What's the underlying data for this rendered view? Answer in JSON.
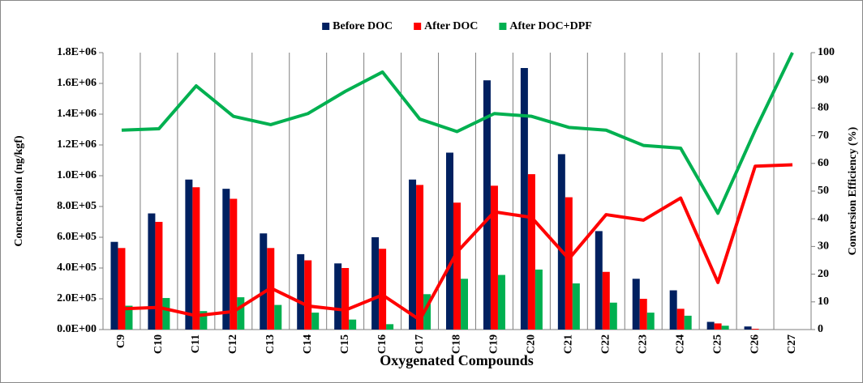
{
  "chart_data": {
    "type": "bar",
    "x_label": "Oxygenated Compounds",
    "y_label": "Concentration (ng/kgf)",
    "y2_label": "Conversion Efficiency (%)",
    "legend": "top",
    "categories": [
      "C9",
      "C10",
      "C11",
      "C12",
      "C13",
      "C14",
      "C15",
      "C16",
      "C17",
      "C18",
      "C19",
      "C20",
      "C21",
      "C22",
      "C23",
      "C24",
      "C25",
      "C26",
      "C27"
    ],
    "series": [
      {
        "name": "Before DOC",
        "type": "bar",
        "color": "#002060",
        "values": [
          570000,
          755000,
          975000,
          915000,
          625000,
          490000,
          430000,
          600000,
          975000,
          1150000,
          1620000,
          1700000,
          1140000,
          640000,
          330000,
          255000,
          50000,
          20000,
          0
        ]
      },
      {
        "name": "After DOC",
        "type": "bar",
        "color": "#ff0000",
        "values": [
          530000,
          700000,
          925000,
          850000,
          530000,
          450000,
          400000,
          525000,
          940000,
          825000,
          935000,
          1010000,
          860000,
          375000,
          200000,
          135000,
          40000,
          5000,
          0
        ]
      },
      {
        "name": "After DOC+DPF",
        "type": "bar",
        "color": "#00b050",
        "values": [
          155000,
          205000,
          120000,
          210000,
          160000,
          110000,
          65000,
          35000,
          230000,
          330000,
          355000,
          390000,
          300000,
          175000,
          110000,
          90000,
          25000,
          0,
          0
        ]
      },
      {
        "type": "line",
        "axis": "y2",
        "color": "#ff0000",
        "values": [
          7.5,
          8,
          5,
          6.5,
          15,
          8.5,
          7,
          12.5,
          3.5,
          28,
          42.5,
          40.5,
          25.5,
          41.5,
          39.5,
          47.5,
          17,
          59,
          59.5
        ]
      },
      {
        "type": "line",
        "axis": "y2",
        "color": "#00b050",
        "values": [
          72,
          72.5,
          88,
          77,
          74,
          78,
          86,
          93,
          76,
          71.5,
          78,
          77,
          73,
          72,
          66.5,
          65.5,
          42,
          72,
          100
        ]
      }
    ],
    "ylim": [
      0,
      1800000
    ],
    "yticks": [
      {
        "value": 0,
        "label": "0.0E+00"
      },
      {
        "value": 200000,
        "label": "2.0E+05"
      },
      {
        "value": 400000,
        "label": "4.0E+05"
      },
      {
        "value": 600000,
        "label": "6.0E+05"
      },
      {
        "value": 800000,
        "label": "8.0E+05"
      },
      {
        "value": 1000000,
        "label": "1.0E+06"
      },
      {
        "value": 1200000,
        "label": "1.2E+06"
      },
      {
        "value": 1400000,
        "label": "1.4E+06"
      },
      {
        "value": 1600000,
        "label": "1.6E+06"
      },
      {
        "value": 1800000,
        "label": "1.8E+06"
      }
    ],
    "y2lim": [
      0,
      100
    ],
    "y2ticks": [
      0,
      10,
      20,
      30,
      40,
      50,
      60,
      70,
      80,
      90,
      100
    ],
    "grid": true
  }
}
